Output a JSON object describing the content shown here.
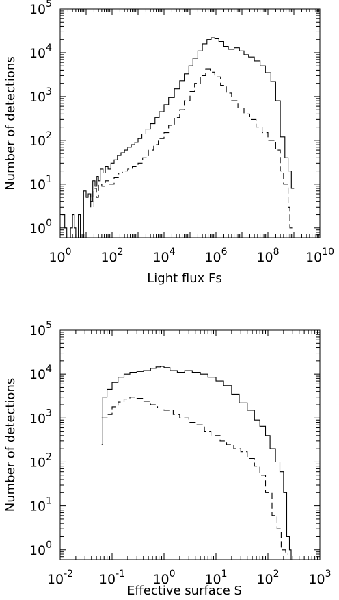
{
  "chart_data": [
    {
      "type": "line",
      "xlabel": "Light flux Fs",
      "ylabel": "Number of detections",
      "xscale": "log",
      "yscale": "log",
      "xlim": [
        1,
        10000000000
      ],
      "ylim": [
        0.6,
        100000
      ],
      "xticks": [
        {
          "v": 1,
          "base": "10",
          "exp": "0"
        },
        {
          "v": 100,
          "base": "10",
          "exp": "2"
        },
        {
          "v": 10000,
          "base": "10",
          "exp": "4"
        },
        {
          "v": 1000000,
          "base": "10",
          "exp": "6"
        },
        {
          "v": 100000000,
          "base": "10",
          "exp": "8"
        },
        {
          "v": 10000000000,
          "base": "10",
          "exp": "10"
        }
      ],
      "yticks": [
        {
          "v": 1,
          "base": "10",
          "exp": "0"
        },
        {
          "v": 10,
          "base": "10",
          "exp": "1"
        },
        {
          "v": 100,
          "base": "10",
          "exp": "2"
        },
        {
          "v": 1000,
          "base": "10",
          "exp": "3"
        },
        {
          "v": 10000,
          "base": "10",
          "exp": "4"
        },
        {
          "v": 100000,
          "base": "10",
          "exp": "5"
        }
      ],
      "series": [
        {
          "style": "solid",
          "points": [
            [
              1.2,
              2
            ],
            [
              1.5,
              1
            ],
            [
              1.8,
              0.6
            ],
            [
              2.5,
              1
            ],
            [
              3,
              2
            ],
            [
              3.5,
              1
            ],
            [
              4,
              0.6
            ],
            [
              5,
              2
            ],
            [
              6,
              0.6
            ],
            [
              8,
              7
            ],
            [
              10,
              5
            ],
            [
              12,
              6
            ],
            [
              15,
              4
            ],
            [
              18,
              12
            ],
            [
              22,
              9
            ],
            [
              26,
              15
            ],
            [
              30,
              12
            ],
            [
              35,
              22
            ],
            [
              45,
              18
            ],
            [
              55,
              25
            ],
            [
              70,
              22
            ],
            [
              90,
              30
            ],
            [
              120,
              36
            ],
            [
              160,
              45
            ],
            [
              220,
              52
            ],
            [
              300,
              60
            ],
            [
              400,
              70
            ],
            [
              550,
              80
            ],
            [
              750,
              90
            ],
            [
              1000,
              110
            ],
            [
              1400,
              140
            ],
            [
              2000,
              180
            ],
            [
              3000,
              240
            ],
            [
              4500,
              330
            ],
            [
              6500,
              450
            ],
            [
              10000,
              650
            ],
            [
              15000,
              950
            ],
            [
              25000,
              1500
            ],
            [
              40000,
              2300
            ],
            [
              60000,
              3300
            ],
            [
              90000,
              5000
            ],
            [
              130000,
              7500
            ],
            [
              200000,
              11000
            ],
            [
              300000,
              16000
            ],
            [
              450000,
              20000
            ],
            [
              650000,
              22000
            ],
            [
              900000,
              21000
            ],
            [
              1300000,
              18000
            ],
            [
              2000000,
              14000
            ],
            [
              3000000,
              12000
            ],
            [
              5000000,
              13000
            ],
            [
              8000000,
              11000
            ],
            [
              12000000,
              9000
            ],
            [
              18000000,
              8000
            ],
            [
              30000000,
              6500
            ],
            [
              50000000,
              5000
            ],
            [
              80000000,
              3500
            ],
            [
              130000000,
              2200
            ],
            [
              200000000,
              800
            ],
            [
              300000000,
              120
            ],
            [
              450000000,
              40
            ],
            [
              600000000,
              20
            ],
            [
              800000000,
              8
            ]
          ]
        },
        {
          "style": "dashed",
          "points": [
            [
              12,
              6
            ],
            [
              15,
              3
            ],
            [
              20,
              8
            ],
            [
              25,
              5
            ],
            [
              30,
              10
            ],
            [
              40,
              9
            ],
            [
              55,
              12
            ],
            [
              80,
              10
            ],
            [
              120,
              14
            ],
            [
              180,
              18
            ],
            [
              250,
              20
            ],
            [
              400,
              22
            ],
            [
              600,
              25
            ],
            [
              1000,
              30
            ],
            [
              1500,
              40
            ],
            [
              2500,
              60
            ],
            [
              4000,
              80
            ],
            [
              6000,
              110
            ],
            [
              10000,
              150
            ],
            [
              15000,
              220
            ],
            [
              25000,
              330
            ],
            [
              40000,
              500
            ],
            [
              60000,
              800
            ],
            [
              100000,
              1300
            ],
            [
              150000,
              2000
            ],
            [
              250000,
              3000
            ],
            [
              400000,
              4200
            ],
            [
              600000,
              3600
            ],
            [
              900000,
              2800
            ],
            [
              1500000,
              1800
            ],
            [
              2500000,
              1200
            ],
            [
              4000000,
              800
            ],
            [
              7000000,
              550
            ],
            [
              12000000,
              400
            ],
            [
              20000000,
              300
            ],
            [
              35000000,
              200
            ],
            [
              60000000,
              150
            ],
            [
              100000000,
              100
            ],
            [
              200000000,
              60
            ],
            [
              300000000,
              20
            ],
            [
              400000000,
              10
            ],
            [
              600000000,
              3
            ],
            [
              700000000,
              1
            ]
          ]
        }
      ]
    },
    {
      "type": "line",
      "xlabel": "Effective surface S",
      "ylabel": "Number of detections",
      "xscale": "log",
      "yscale": "log",
      "xlim": [
        0.01,
        1000
      ],
      "ylim": [
        0.6,
        100000
      ],
      "xticks": [
        {
          "v": 0.01,
          "base": "10",
          "exp": "-2"
        },
        {
          "v": 0.1,
          "base": "10",
          "exp": "-1"
        },
        {
          "v": 1,
          "base": "10",
          "exp": "0"
        },
        {
          "v": 10,
          "base": "10",
          "exp": "1"
        },
        {
          "v": 100,
          "base": "10",
          "exp": "2"
        },
        {
          "v": 1000,
          "base": "10",
          "exp": "3"
        }
      ],
      "yticks": [
        {
          "v": 1,
          "base": "10",
          "exp": "0"
        },
        {
          "v": 10,
          "base": "10",
          "exp": "1"
        },
        {
          "v": 100,
          "base": "10",
          "exp": "2"
        },
        {
          "v": 1000,
          "base": "10",
          "exp": "3"
        },
        {
          "v": 10000,
          "base": "10",
          "exp": "4"
        },
        {
          "v": 100000,
          "base": "10",
          "exp": "5"
        }
      ],
      "series": [
        {
          "style": "solid",
          "points": [
            [
              0.063,
              250
            ],
            [
              0.066,
              3000
            ],
            [
              0.08,
              4500
            ],
            [
              0.1,
              6500
            ],
            [
              0.13,
              8500
            ],
            [
              0.17,
              10000
            ],
            [
              0.22,
              11000
            ],
            [
              0.3,
              11500
            ],
            [
              0.4,
              12000
            ],
            [
              0.55,
              13500
            ],
            [
              0.7,
              14500
            ],
            [
              0.85,
              15000
            ],
            [
              1,
              14000
            ],
            [
              1.3,
              12000
            ],
            [
              1.8,
              11000
            ],
            [
              2.5,
              12000
            ],
            [
              3.5,
              11000
            ],
            [
              5,
              10000
            ],
            [
              7,
              8500
            ],
            [
              10,
              7000
            ],
            [
              14,
              5500
            ],
            [
              20,
              3500
            ],
            [
              28,
              2200
            ],
            [
              40,
              1500
            ],
            [
              55,
              900
            ],
            [
              70,
              650
            ],
            [
              90,
              400
            ],
            [
              110,
              200
            ],
            [
              140,
              100
            ],
            [
              170,
              60
            ],
            [
              200,
              20
            ],
            [
              230,
              2
            ],
            [
              260,
              1
            ],
            [
              280,
              0.6
            ]
          ]
        },
        {
          "style": "dashed",
          "points": [
            [
              0.063,
              1000
            ],
            [
              0.08,
              1200
            ],
            [
              0.1,
              1800
            ],
            [
              0.13,
              2300
            ],
            [
              0.17,
              2700
            ],
            [
              0.22,
              3000
            ],
            [
              0.3,
              2800
            ],
            [
              0.4,
              2400
            ],
            [
              0.55,
              2000
            ],
            [
              0.75,
              1700
            ],
            [
              1,
              1500
            ],
            [
              1.5,
              1200
            ],
            [
              2,
              1000
            ],
            [
              3,
              800
            ],
            [
              4,
              700
            ],
            [
              6,
              500
            ],
            [
              8,
              400
            ],
            [
              12,
              300
            ],
            [
              16,
              250
            ],
            [
              22,
              200
            ],
            [
              30,
              170
            ],
            [
              40,
              120
            ],
            [
              55,
              80
            ],
            [
              70,
              50
            ],
            [
              90,
              20
            ],
            [
              120,
              6
            ],
            [
              150,
              3
            ],
            [
              180,
              1
            ],
            [
              220,
              0.8
            ]
          ]
        }
      ]
    }
  ]
}
